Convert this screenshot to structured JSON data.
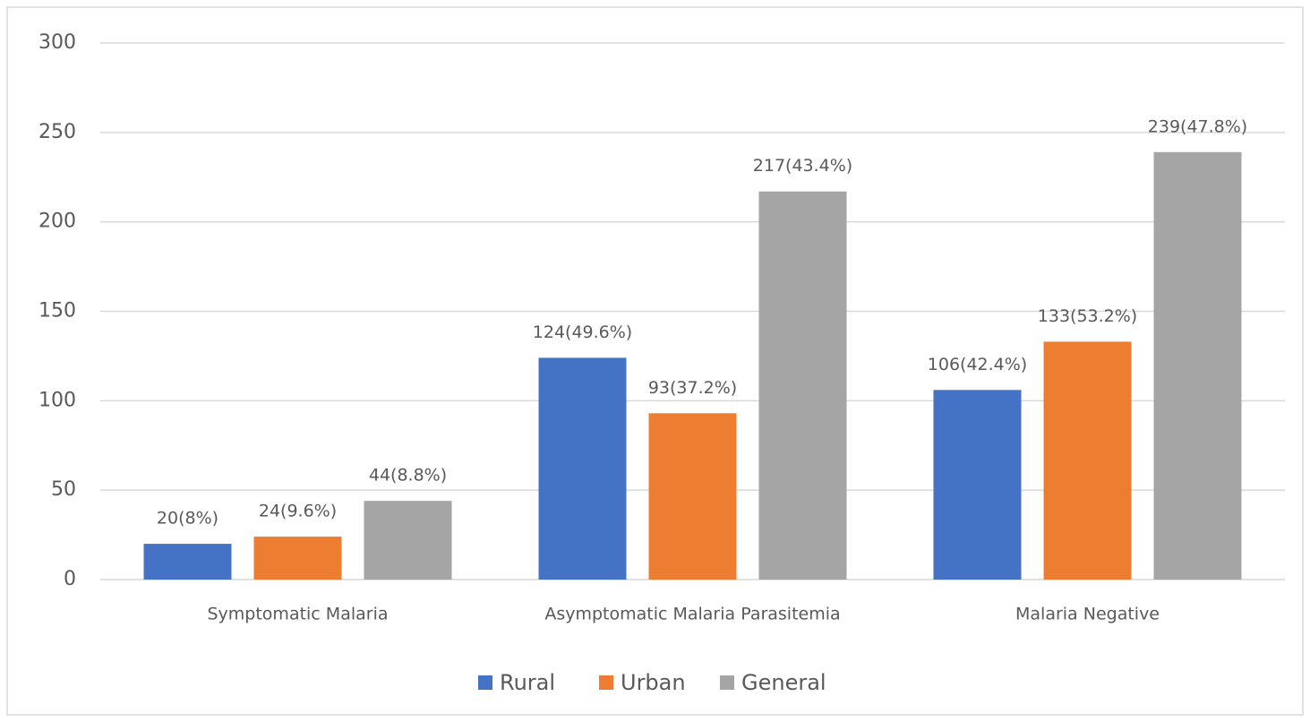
{
  "chart_data": {
    "type": "bar",
    "categories": [
      "Symptomatic Malaria",
      "Asymptomatic Malaria Parasitemia",
      "Malaria Negative"
    ],
    "series": [
      {
        "name": "Rural",
        "color": "#4472c4",
        "values": [
          20,
          124,
          106
        ],
        "value_labels": [
          "20(8%)",
          "124(49.6%)",
          "106(42.4%)"
        ]
      },
      {
        "name": "Urban",
        "color": "#ed7d31",
        "values": [
          24,
          93,
          133
        ],
        "value_labels": [
          "24(9.6%)",
          "93(37.2%)",
          "133(53.2%)"
        ]
      },
      {
        "name": "General",
        "color": "#a5a5a5",
        "values": [
          44,
          217,
          239
        ],
        "value_labels": [
          "44(8.8%)",
          "217(43.4%)",
          "239(47.8%)"
        ]
      }
    ],
    "ylim": [
      0,
      300
    ],
    "yticks": [
      0,
      50,
      100,
      150,
      200,
      250,
      300
    ],
    "grid": true,
    "legend": "bottom"
  }
}
